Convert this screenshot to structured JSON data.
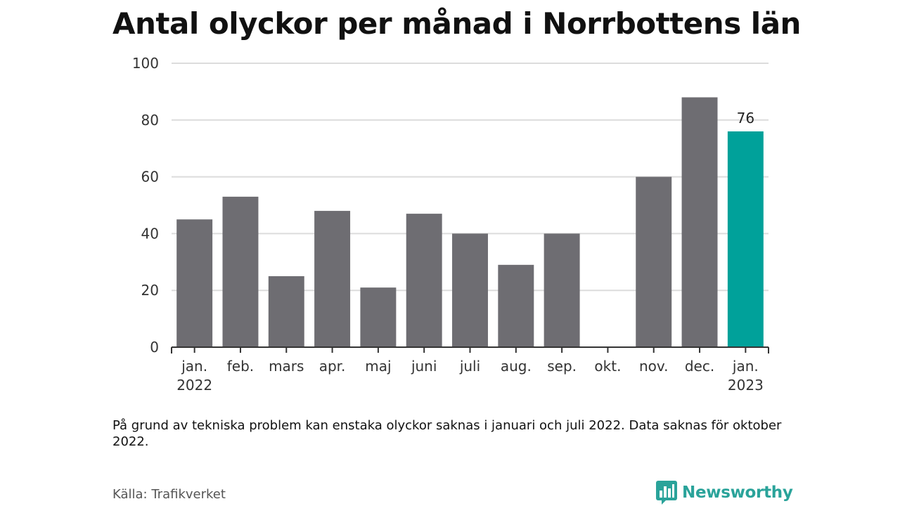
{
  "header": {
    "title": "Antal olyckor per månad i Norrbottens län"
  },
  "chart_data": {
    "type": "bar",
    "categories": [
      [
        "jan.",
        "2022"
      ],
      [
        "feb."
      ],
      [
        "mars"
      ],
      [
        "apr."
      ],
      [
        "maj"
      ],
      [
        "juni"
      ],
      [
        "juli"
      ],
      [
        "aug."
      ],
      [
        "sep."
      ],
      [
        "okt."
      ],
      [
        "nov."
      ],
      [
        "dec."
      ],
      [
        "jan.",
        "2023"
      ]
    ],
    "values": [
      45,
      53,
      25,
      48,
      21,
      47,
      40,
      29,
      40,
      null,
      60,
      88,
      76
    ],
    "highlight_index": 12,
    "highlight_label": "76",
    "yticks": [
      0,
      20,
      40,
      60,
      80,
      100
    ],
    "ylim": [
      0,
      100
    ],
    "grid": true,
    "colors": {
      "bar": "#6e6d72",
      "highlight": "#00a19a",
      "grid": "#dcdcdc",
      "axis": "#333333"
    }
  },
  "footer": {
    "note": "På grund av tekniska problem kan enstaka olyckor saknas i januari och juli 2022. Data saknas för oktober 2022.",
    "source": "Källa: Trafikverket",
    "brand": "Newsworthy",
    "brand_icon": "bar-chart-bubble-icon",
    "brand_color": "#2aa39a"
  }
}
